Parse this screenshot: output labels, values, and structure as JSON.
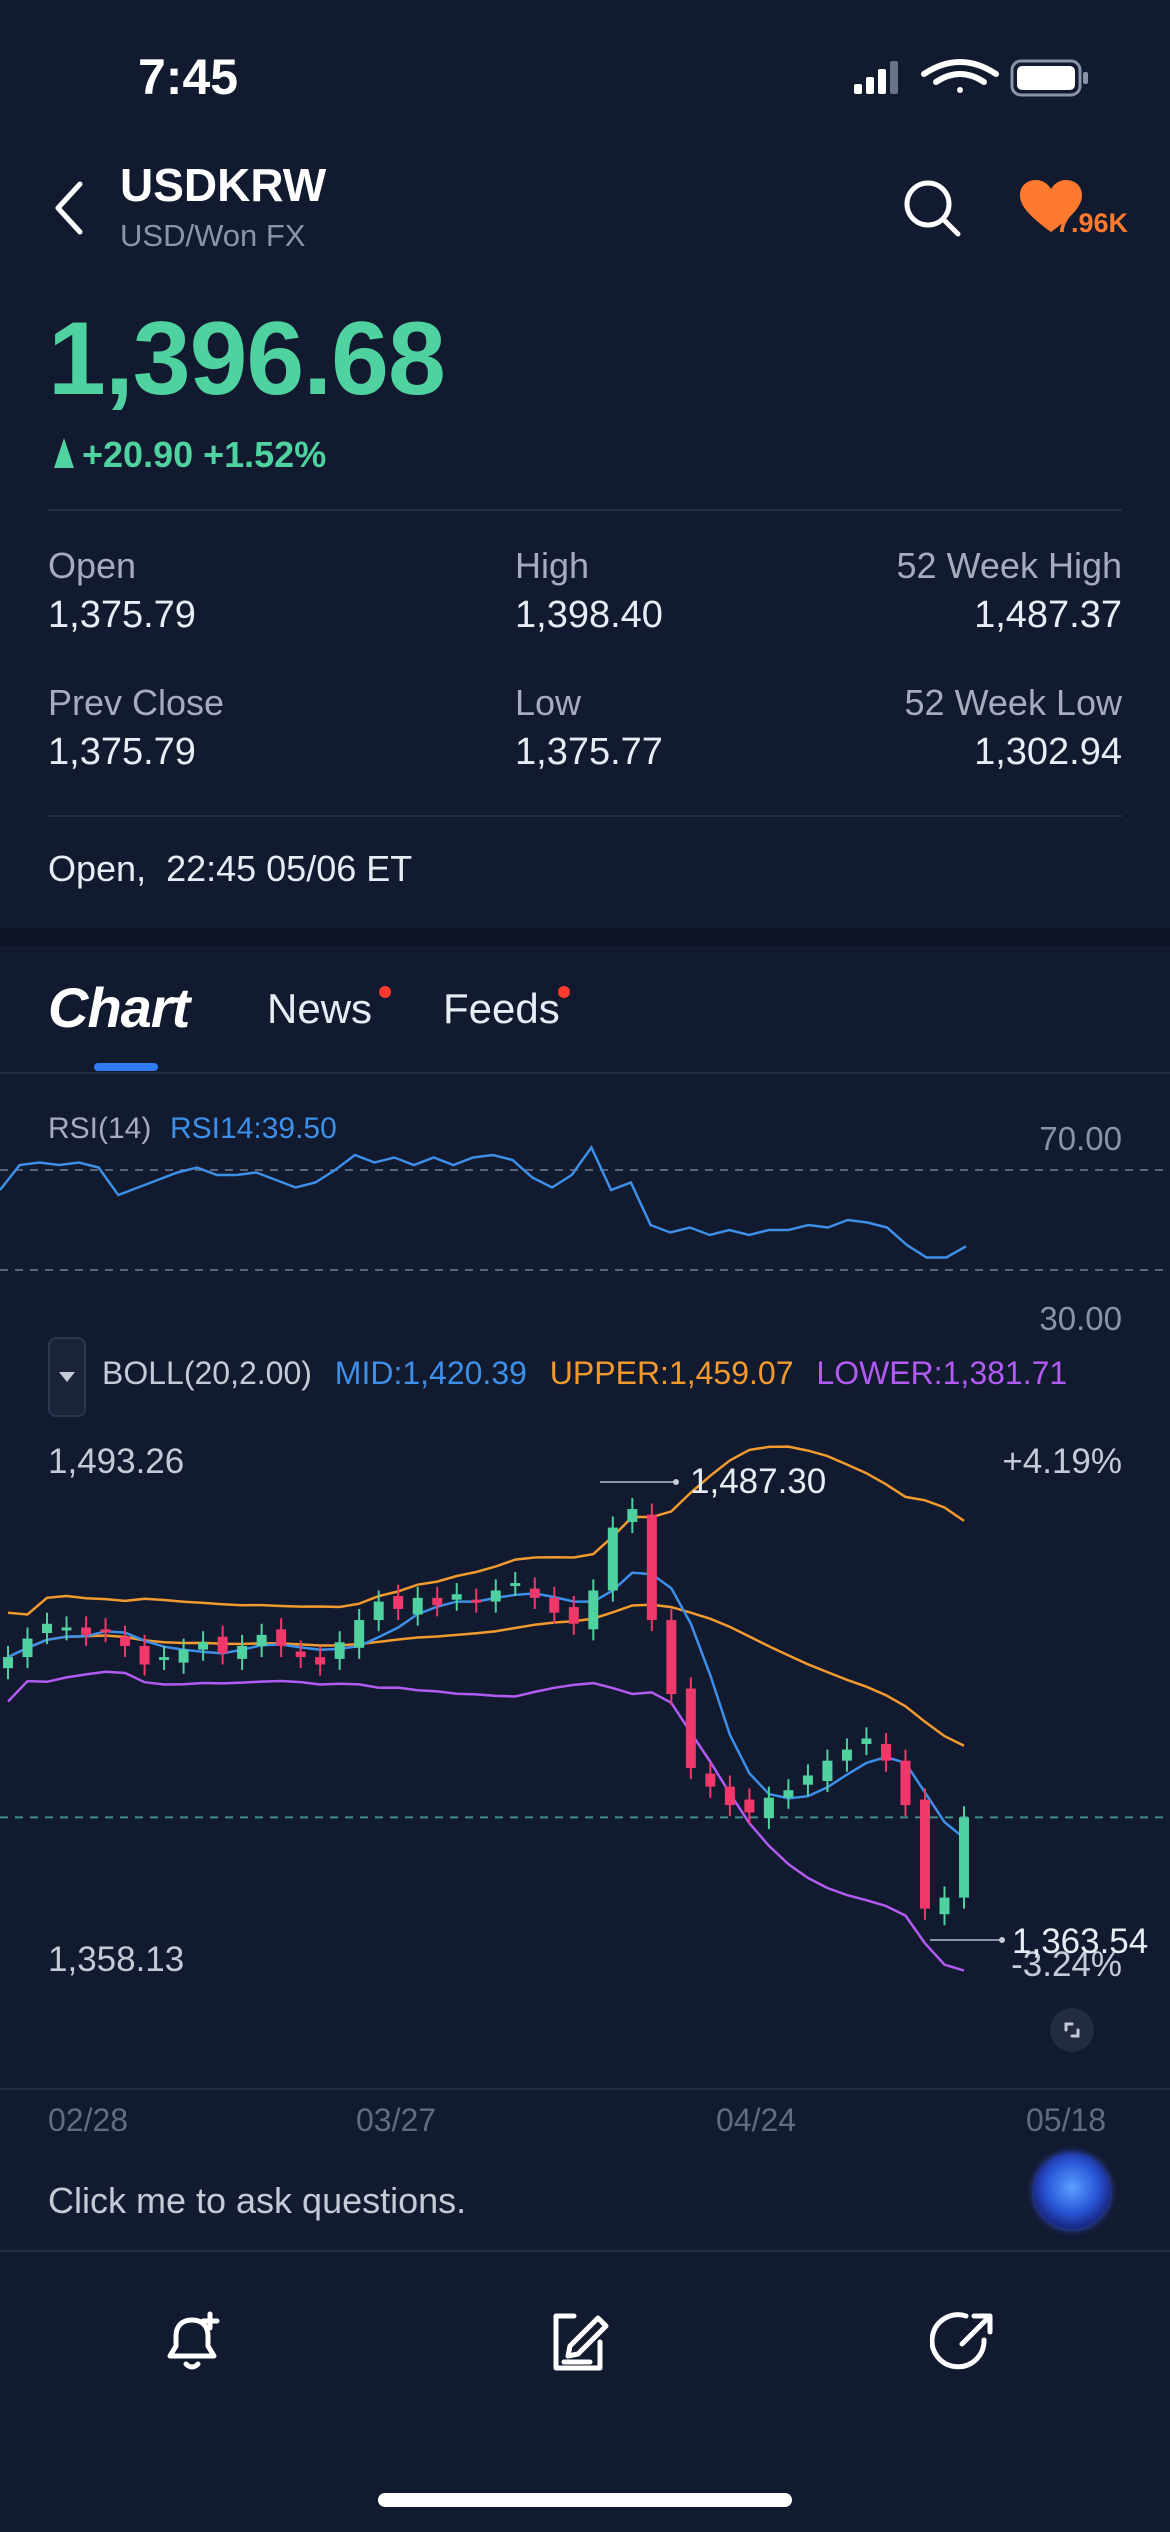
{
  "status": {
    "time": "7:45"
  },
  "header": {
    "symbol": "USDKRW",
    "subtitle": "USD/Won FX",
    "followers": "7.96K"
  },
  "quote": {
    "price": "1,396.68",
    "change": "+20.90 +1.52%",
    "direction": "up",
    "color_up": "#4fd1a0"
  },
  "stats": {
    "open_label": "Open",
    "open": "1,375.79",
    "high_label": "High",
    "high": "1,398.40",
    "wk52_high_label": "52 Week High",
    "wk52_high": "1,487.37",
    "prev_close_label": "Prev Close",
    "prev_close": "1,375.79",
    "low_label": "Low",
    "low": "1,375.77",
    "wk52_low_label": "52 Week Low",
    "wk52_low": "1,302.94"
  },
  "market_status": "Open,  22:45 05/06 ET",
  "tabs": [
    {
      "label": "Chart",
      "active": true
    },
    {
      "label": "News",
      "dot": true
    },
    {
      "label": "Feeds",
      "dot": true
    }
  ],
  "rsi": {
    "label": "RSI(14)",
    "value_text": "RSI14:39.50",
    "upper": "70.00",
    "lower": "30.00"
  },
  "boll": {
    "label": "BOLL(20,2.00)",
    "mid": "MID:1,420.39",
    "upper": "UPPER:1,459.07",
    "lower": "LOWER:1,381.71"
  },
  "price_chart": {
    "top_value": "1,493.26",
    "bottom_value": "1,358.13",
    "top_pct": "+4.19%",
    "bottom_pct": "-3.24%",
    "high_marker": "1,487.30",
    "low_marker": "1,363.54",
    "x_ticks": [
      "02/28",
      "03/27",
      "04/24",
      "05/18"
    ]
  },
  "ask": {
    "placeholder": "Click me to ask questions."
  },
  "colors": {
    "background": "#111a2e",
    "up": "#4fd1a0",
    "down": "#f0386b",
    "rsi_line": "#3d8fe8",
    "boll_upper": "#f39a2e",
    "boll_lower": "#b25bf2",
    "accent": "#ff7a2f"
  },
  "chart_data": {
    "type": "line",
    "title": "",
    "series": [
      {
        "name": "RSI14",
        "values": [
          62,
          72,
          73,
          72,
          73,
          71,
          60,
          63,
          66,
          69,
          71,
          68,
          68,
          69,
          66,
          63,
          65,
          70,
          76,
          73,
          75,
          72,
          75,
          72,
          75,
          76,
          74,
          67,
          63,
          68,
          79,
          62,
          65,
          48,
          45,
          47,
          44,
          46,
          44,
          46,
          46,
          48,
          47,
          50,
          49,
          47,
          40,
          35,
          35,
          39.5
        ]
      }
    ],
    "ylim": [
      0,
      100
    ],
    "reference_lines": [
      70,
      30
    ]
  }
}
